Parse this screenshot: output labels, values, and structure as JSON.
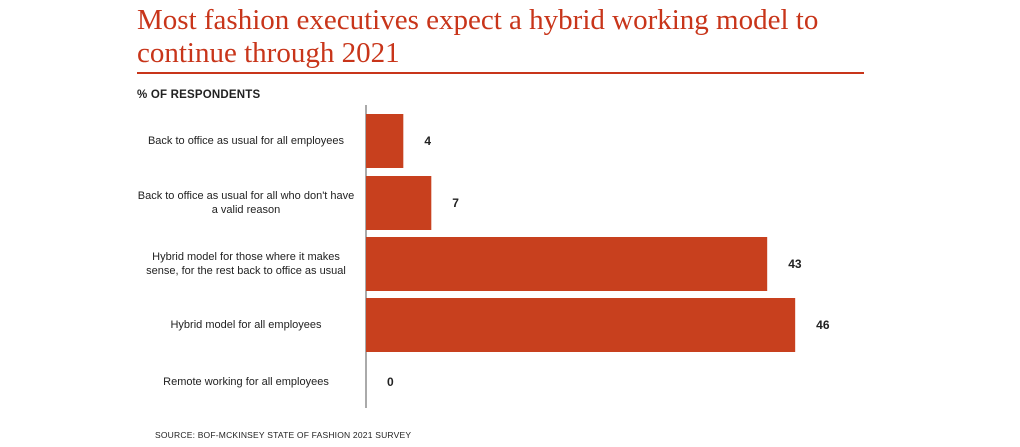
{
  "title": "Most fashion executives expect a hybrid working model to continue through 2021",
  "subtitle": "% OF RESPONDENTS",
  "source": "SOURCE: BOF-MCKINSEY STATE OF FASHION 2021 SURVEY",
  "colors": {
    "accent": "#c8351a",
    "bar": "#c8401e",
    "axis": "#555555"
  },
  "chart_data": {
    "type": "bar",
    "orientation": "horizontal",
    "categories": [
      "Back to office as usual for all employees",
      "Back to office as usual for all who don't have a valid reason",
      "Hybrid model for those where it makes sense, for the rest back to office as usual",
      "Hybrid model for all employees",
      "Remote working for all employees"
    ],
    "values": [
      4,
      7,
      43,
      46,
      0
    ],
    "xlim": [
      0,
      50
    ],
    "grid": false,
    "legend": "none"
  }
}
